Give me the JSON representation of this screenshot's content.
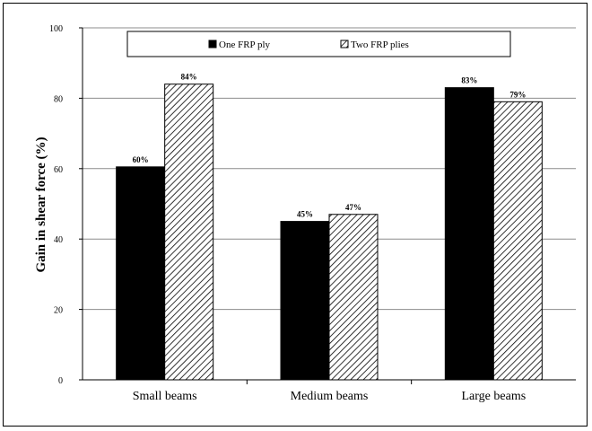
{
  "chart_data": {
    "type": "bar",
    "title": "",
    "xlabel": "",
    "ylabel": "Gain in shear force  (%)",
    "ylim": [
      0,
      100
    ],
    "yticks": [
      0,
      20,
      40,
      60,
      80,
      100
    ],
    "grid": true,
    "legend_position": "top",
    "categories": [
      "Small beams",
      "Medium beams",
      "Large beams"
    ],
    "series": [
      {
        "name": "One FRP ply",
        "values": [
          60.5,
          45,
          83
        ],
        "labels": [
          "60%",
          "45%",
          "83%"
        ],
        "fill": "solid",
        "color": "#000000"
      },
      {
        "name": "Two FRP plies",
        "values": [
          84,
          47,
          79
        ],
        "labels": [
          "84%",
          "47%",
          "79%"
        ],
        "fill": "hatched",
        "color": "#000000"
      }
    ]
  }
}
